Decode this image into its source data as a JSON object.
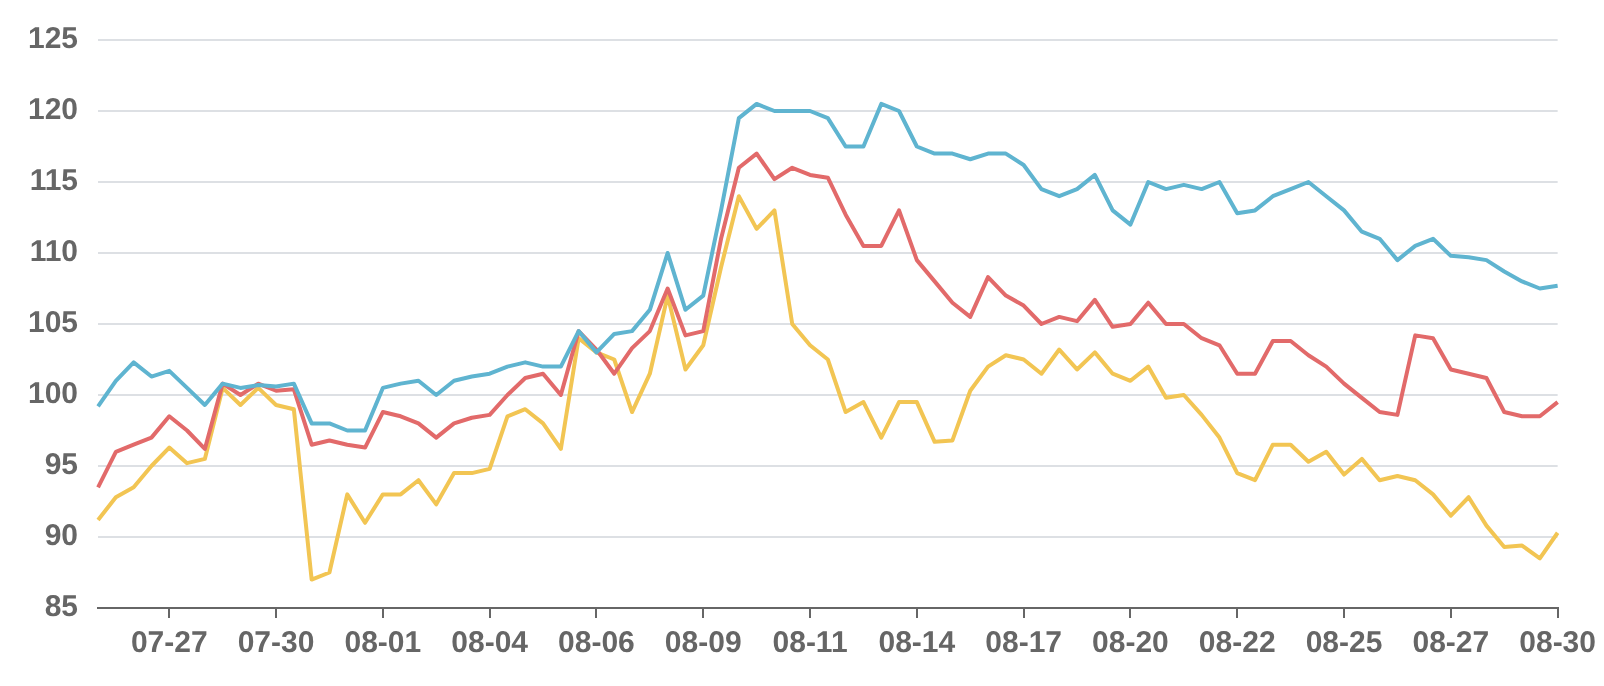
{
  "chart_data": {
    "type": "line",
    "categories": [
      null,
      null,
      null,
      null,
      "07-27",
      null,
      null,
      null,
      null,
      null,
      "07-30",
      null,
      null,
      null,
      null,
      null,
      "08-01",
      null,
      null,
      null,
      null,
      null,
      "08-04",
      null,
      null,
      null,
      null,
      null,
      "08-06",
      null,
      null,
      null,
      null,
      null,
      "08-09",
      null,
      null,
      null,
      null,
      null,
      "08-11",
      null,
      null,
      null,
      null,
      null,
      "08-14",
      null,
      null,
      null,
      null,
      null,
      "08-17",
      null,
      null,
      null,
      null,
      null,
      "08-20",
      null,
      null,
      null,
      null,
      null,
      "08-22",
      null,
      null,
      null,
      null,
      null,
      "08-25",
      null,
      null,
      null,
      null,
      null,
      "08-27",
      null,
      null,
      null,
      null,
      null,
      "08-30"
    ],
    "series": [
      {
        "color": "#5fb4d0",
        "values": [
          99.2,
          101,
          102.3,
          101.3,
          101.7,
          100.5,
          99.3,
          100.8,
          100.5,
          100.7,
          100.6,
          100.8,
          98,
          98,
          97.5,
          97.5,
          100.5,
          100.8,
          101,
          100,
          101,
          101.3,
          101.5,
          102,
          102.3,
          102,
          102,
          104.5,
          103,
          104.3,
          104.5,
          106,
          110,
          106,
          107,
          113,
          119.5,
          120.5,
          120,
          120,
          120,
          119.5,
          117.5,
          117.5,
          120.5,
          120,
          117.5,
          117,
          117,
          116.6,
          117,
          117,
          116.2,
          114.5,
          114,
          114.5,
          115.5,
          113,
          112,
          115,
          114.5,
          114.8,
          114.5,
          115,
          112.8,
          113,
          114,
          114.5,
          115,
          114,
          113,
          111.5,
          111,
          109.5,
          110.5,
          111,
          109.8,
          109.7,
          109.5,
          108.7,
          108,
          107.5,
          107.7
        ]
      },
      {
        "color": "#e26a6a",
        "values": [
          93.5,
          96,
          96.5,
          97,
          98.5,
          97.5,
          96.2,
          100.8,
          100,
          100.8,
          100.3,
          100.4,
          96.5,
          96.8,
          96.5,
          96.3,
          98.8,
          98.5,
          98,
          97,
          98,
          98.4,
          98.6,
          100,
          101.2,
          101.5,
          100,
          104.5,
          103.2,
          101.5,
          103.3,
          104.5,
          107.5,
          104.2,
          104.5,
          111,
          116,
          117,
          115.2,
          116,
          115.5,
          115.3,
          112.7,
          110.5,
          110.5,
          113,
          109.5,
          108,
          106.5,
          105.5,
          108.3,
          107,
          106.3,
          105,
          105.5,
          105.2,
          106.7,
          104.8,
          105,
          106.5,
          105,
          105,
          104,
          103.5,
          101.5,
          101.5,
          103.8,
          103.8,
          102.8,
          102,
          100.8,
          99.8,
          98.8,
          98.6,
          104.2,
          104,
          101.8,
          101.5,
          101.2,
          98.8,
          98.5,
          98.5,
          99.5
        ]
      },
      {
        "color": "#f2c553",
        "values": [
          91.2,
          92.8,
          93.5,
          95,
          96.3,
          95.2,
          95.5,
          100.5,
          99.3,
          100.5,
          99.3,
          99,
          87,
          87.5,
          93,
          91,
          93,
          93,
          94,
          92.3,
          94.5,
          94.5,
          94.8,
          98.5,
          99,
          98,
          96.2,
          104,
          103,
          102.5,
          98.8,
          101.5,
          107,
          101.8,
          103.5,
          109,
          114,
          111.7,
          113,
          105,
          103.5,
          102.5,
          98.8,
          99.5,
          97,
          99.5,
          99.5,
          96.7,
          96.8,
          100.3,
          102,
          102.8,
          102.5,
          101.5,
          103.2,
          101.8,
          103,
          101.5,
          101,
          102,
          99.8,
          100,
          98.6,
          97,
          94.5,
          94,
          96.5,
          96.5,
          95.3,
          96,
          94.4,
          95.5,
          94,
          94.3,
          94,
          93,
          91.5,
          92.8,
          90.8,
          89.3,
          89.4,
          88.5,
          90.3
        ]
      }
    ],
    "ylim": [
      85,
      125
    ],
    "yticks": [
      85,
      90,
      95,
      100,
      105,
      110,
      115,
      120,
      125
    ],
    "grid": "y",
    "marker": "none",
    "line_style": "solid"
  }
}
